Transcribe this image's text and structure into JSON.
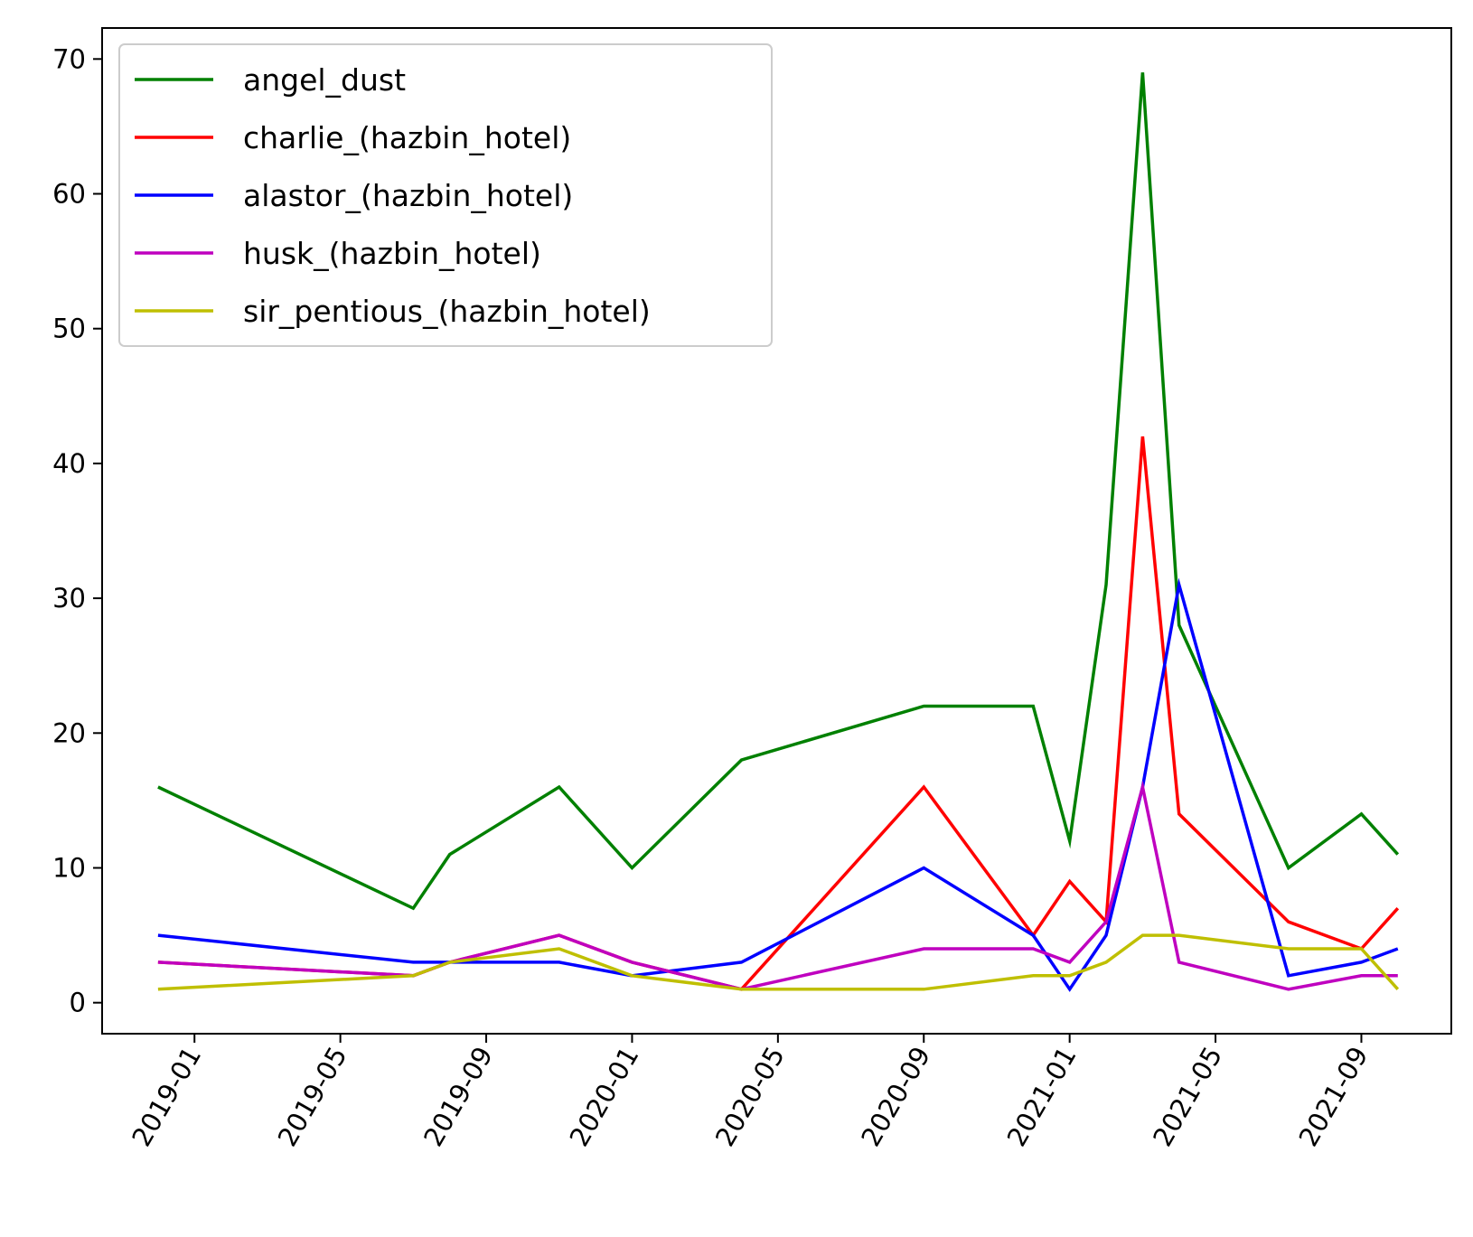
{
  "chart_data": {
    "type": "line",
    "title": "",
    "xlabel": "",
    "ylabel": "",
    "x_axis_type": "date",
    "xlim": [
      "2018-10-15",
      "2021-11-15"
    ],
    "ylim": [
      -2.3,
      72.3
    ],
    "x_ticks": [
      "2019-01",
      "2019-05",
      "2019-09",
      "2020-01",
      "2020-05",
      "2020-09",
      "2021-01",
      "2021-05",
      "2021-09"
    ],
    "y_ticks": [
      0,
      10,
      20,
      30,
      40,
      50,
      60,
      70
    ],
    "x_tick_rotation": 60,
    "grid": false,
    "legend_position": "upper left",
    "x": [
      "2018-12-01",
      "2019-07-01",
      "2019-08-01",
      "2019-11-01",
      "2020-01-01",
      "2020-04-01",
      "2020-09-01",
      "2020-12-01",
      "2021-01-01",
      "2021-02-01",
      "2021-03-01",
      "2021-04-01",
      "2021-07-01",
      "2021-09-01",
      "2021-10-01"
    ],
    "series": [
      {
        "name": "angel_dust",
        "color": "#008000",
        "values": [
          16,
          7,
          11,
          16,
          10,
          18,
          22,
          22,
          12,
          31,
          69,
          28,
          10,
          14,
          11
        ]
      },
      {
        "name": "charlie_(hazbin_hotel)",
        "color": "#ff0000",
        "values": [
          3,
          2,
          3,
          5,
          3,
          1,
          16,
          5,
          9,
          6,
          42,
          14,
          6,
          4,
          7
        ]
      },
      {
        "name": "alastor_(hazbin_hotel)",
        "color": "#0000ff",
        "values": [
          5,
          3,
          3,
          3,
          2,
          3,
          10,
          5,
          1,
          5,
          16,
          31,
          2,
          3,
          4
        ]
      },
      {
        "name": "husk_(hazbin_hotel)",
        "color": "#bf00bf",
        "values": [
          3,
          2,
          3,
          5,
          3,
          1,
          4,
          4,
          3,
          6,
          16,
          3,
          1,
          2,
          2
        ]
      },
      {
        "name": "sir_pentious_(hazbin_hotel)",
        "color": "#bfbf00",
        "values": [
          1,
          2,
          3,
          4,
          2,
          1,
          1,
          2,
          2,
          3,
          5,
          5,
          4,
          4,
          1
        ]
      }
    ]
  }
}
